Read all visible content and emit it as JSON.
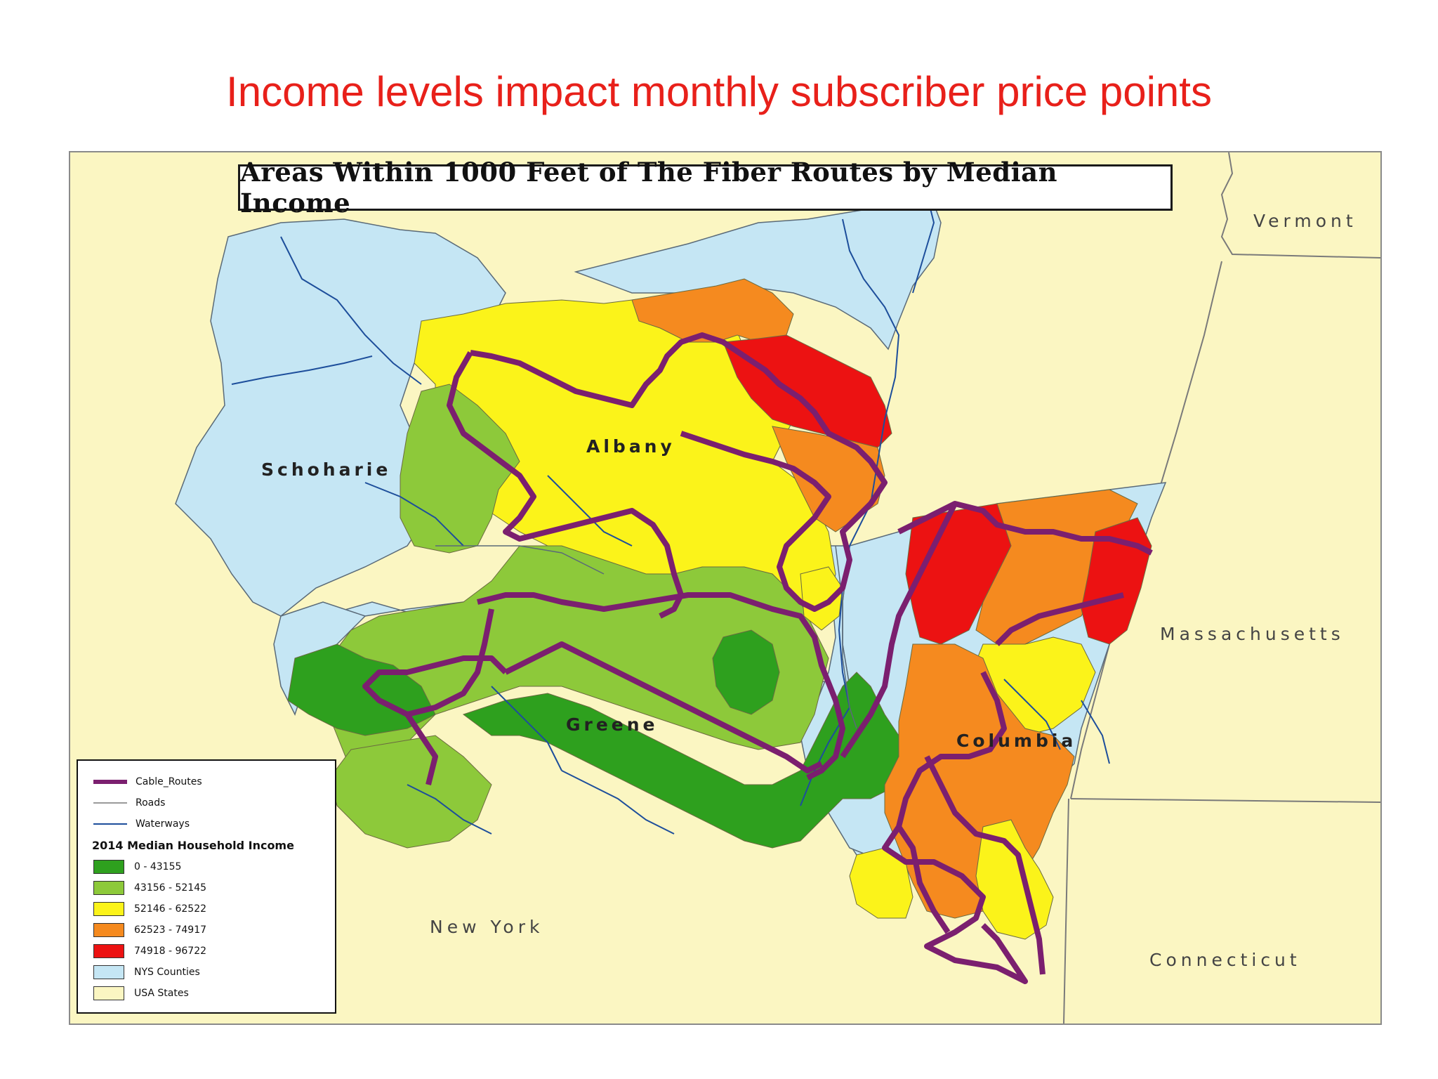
{
  "slide": {
    "title": "Income levels impact monthly subscriber price points"
  },
  "map": {
    "title": "Areas Within 1000 Feet of The Fiber Routes by Median Income",
    "counties": {
      "schoharie": "Schoharie",
      "albany": "Albany",
      "greene": "Greene",
      "columbia": "Columbia"
    },
    "states": {
      "vermont": "Vermont",
      "massachusetts": "Massachusetts",
      "new_york": "New York",
      "connecticut": "Connecticut"
    },
    "colors": {
      "background_state": "#fbf6c2",
      "nys_counties": "#c5e6f4",
      "route": "#7b1f6f",
      "waterway": "#1d4e9b",
      "income_1": "#2ea01e",
      "income_2": "#8dc93a",
      "income_3": "#fbf31a",
      "income_4": "#f58a1f",
      "income_5": "#ec1212"
    }
  },
  "legend": {
    "cable_routes": "Cable_Routes",
    "roads": "Roads",
    "waterways": "Waterways",
    "heading": "2014 Median Household Income",
    "classes": [
      {
        "label": "0 - 43155",
        "color": "#2ea01e"
      },
      {
        "label": "43156 - 52145",
        "color": "#8dc93a"
      },
      {
        "label": "52146 - 62522",
        "color": "#fbf31a"
      },
      {
        "label": "62523 - 74917",
        "color": "#f58a1f"
      },
      {
        "label": "74918 - 96722",
        "color": "#ec1212"
      }
    ],
    "nys_counties": "NYS Counties",
    "usa_states": "USA States"
  }
}
